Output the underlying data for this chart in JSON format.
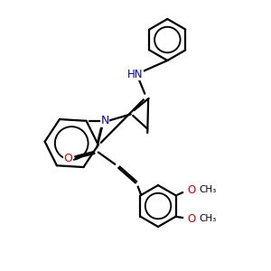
{
  "bg_color": "#ffffff",
  "bond_color": "#000000",
  "N_color": "#0000cc",
  "O_color": "#cc0000",
  "lw": 1.6,
  "xlim": [
    0,
    10
  ],
  "ylim": [
    0,
    10
  ],
  "figsize": [
    3.0,
    3.0
  ],
  "dpi": 100
}
